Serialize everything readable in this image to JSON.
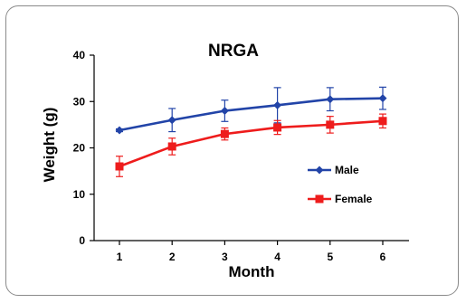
{
  "chart_data": {
    "type": "line",
    "title": "NRGA",
    "xlabel": "Month",
    "ylabel": "Weight (g)",
    "x": [
      1,
      2,
      3,
      4,
      5,
      6
    ],
    "xticks": [
      "1",
      "2",
      "3",
      "4",
      "5",
      "6"
    ],
    "ylim": [
      0,
      40
    ],
    "yticks": [
      "0",
      "10",
      "20",
      "30",
      "40"
    ],
    "grid": false,
    "legend_position": "right",
    "series": [
      {
        "name": "Male",
        "color": "#2244a8",
        "marker": "diamond",
        "values": [
          23.8,
          26.0,
          28.0,
          29.2,
          30.5,
          30.7
        ],
        "errors": [
          0.3,
          2.5,
          2.3,
          3.8,
          2.5,
          2.4
        ]
      },
      {
        "name": "Female",
        "color": "#ee1c1c",
        "marker": "square",
        "values": [
          16.0,
          20.3,
          23.0,
          24.4,
          25.0,
          25.8
        ],
        "errors": [
          2.2,
          1.8,
          1.3,
          1.5,
          1.8,
          1.5
        ]
      }
    ]
  }
}
